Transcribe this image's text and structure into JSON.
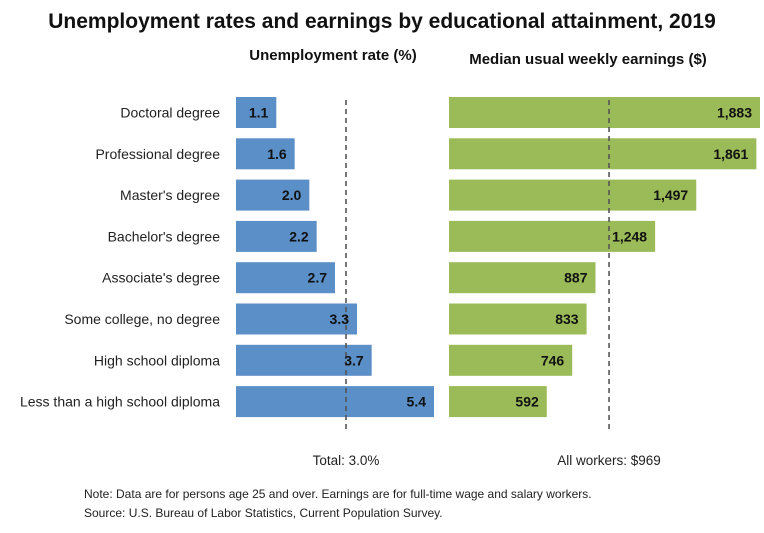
{
  "chart_data": {
    "title": "Unemployment rates and earnings by educational attainment, 2019",
    "categories": [
      "Doctoral degree",
      "Professional degree",
      "Master's degree",
      "Bachelor's degree",
      "Associate's degree",
      "Some college, no degree",
      "High school diploma",
      "Less than a high school diploma"
    ],
    "panels": [
      {
        "type": "bar",
        "orientation": "horizontal",
        "subtitle": "Unemployment rate (%)",
        "values": [
          1.1,
          1.6,
          2.0,
          2.2,
          2.7,
          3.3,
          3.7,
          5.4
        ],
        "labels": [
          "1.1",
          "1.6",
          "2.0",
          "2.2",
          "2.7",
          "3.3",
          "3.7",
          "5.4"
        ],
        "color": "#5b8fc7",
        "reference_value": 3.0,
        "reference_label": "Total: 3.0%",
        "xlim": [
          0,
          5.4
        ]
      },
      {
        "type": "bar",
        "orientation": "horizontal",
        "subtitle": "Median usual weekly earnings ($)",
        "values": [
          1883,
          1861,
          1497,
          1248,
          887,
          833,
          746,
          592
        ],
        "labels": [
          "1,883",
          "1,861",
          "1,497",
          "1,248",
          "887",
          "833",
          "746",
          "592"
        ],
        "color": "#9bbb59",
        "reference_value": 969,
        "reference_label": "All workers: $969",
        "xlim": [
          0,
          1883
        ]
      }
    ],
    "grid": false,
    "legend": "none"
  },
  "notes": {
    "line1": "Note: Data are for persons age 25 and over. Earnings are for full-time wage and salary workers.",
    "line2": "Source: U.S. Bureau of Labor Statistics, Current Population Survey."
  }
}
